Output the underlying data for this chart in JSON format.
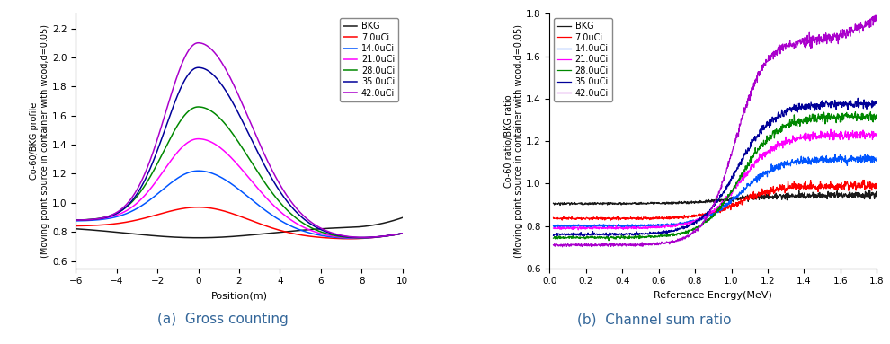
{
  "plot1": {
    "xlabel": "Position(m)",
    "ylabel1": "Co-60/BKG profile",
    "ylabel2": "(Moving point source in container with wood,d=0.05)",
    "xlim": [
      -6,
      10
    ],
    "ylim": [
      0.55,
      2.3
    ],
    "yticks": [
      0.6,
      0.8,
      1.0,
      1.2,
      1.4,
      1.6,
      1.8,
      2.0,
      2.2
    ],
    "xticks": [
      -6,
      -4,
      -2,
      0,
      2,
      4,
      6,
      8,
      10
    ],
    "series": [
      {
        "label": "BKG",
        "color": "#1a1a1a",
        "peak": 0.745,
        "base_l": 0.84,
        "base_r": 0.74,
        "sig_l": 99,
        "sig_r": 99
      },
      {
        "label": "7.0uCi",
        "color": "#ff0000",
        "peak": 0.97,
        "base_l": 0.84,
        "base_r": 0.75,
        "sig_l": 2.0,
        "sig_r": 2.5
      },
      {
        "label": "14.0uCi",
        "color": "#0055ff",
        "peak": 1.22,
        "base_l": 0.875,
        "base_r": 0.75,
        "sig_l": 1.8,
        "sig_r": 2.5
      },
      {
        "label": "21.0uCi",
        "color": "#ff00ff",
        "peak": 1.44,
        "base_l": 0.88,
        "base_r": 0.75,
        "sig_l": 1.7,
        "sig_r": 2.5
      },
      {
        "label": "28.0uCi",
        "color": "#008800",
        "peak": 1.66,
        "base_l": 0.88,
        "base_r": 0.75,
        "sig_l": 1.7,
        "sig_r": 2.5
      },
      {
        "label": "35.0uCi",
        "color": "#000099",
        "peak": 1.93,
        "base_l": 0.88,
        "base_r": 0.75,
        "sig_l": 1.6,
        "sig_r": 2.5
      },
      {
        "label": "42.0uCi",
        "color": "#aa00cc",
        "peak": 2.1,
        "base_l": 0.88,
        "base_r": 0.75,
        "sig_l": 1.6,
        "sig_r": 2.5
      }
    ]
  },
  "plot2": {
    "xlabel": "Reference Energy(MeV)",
    "ylabel1": "Co-60 ratio/BKG ratio",
    "ylabel2": "(Moving point source in container with wood,d=0.05)",
    "xlim": [
      0.0,
      1.8
    ],
    "ylim": [
      0.6,
      1.8
    ],
    "yticks": [
      0.6,
      0.8,
      1.0,
      1.2,
      1.4,
      1.6,
      1.8
    ],
    "xticks": [
      0.0,
      0.2,
      0.4,
      0.6,
      0.8,
      1.0,
      1.2,
      1.4,
      1.6,
      1.8
    ],
    "series": [
      {
        "label": "BKG",
        "color": "#1a1a1a",
        "flat": 0.905,
        "final": 0.945,
        "mid": 1.0,
        "steep": 8
      },
      {
        "label": "7.0uCi",
        "color": "#ff0000",
        "flat": 0.835,
        "final": 0.99,
        "mid": 1.05,
        "steep": 10
      },
      {
        "label": "14.0uCi",
        "color": "#0055ff",
        "flat": 0.8,
        "final": 1.115,
        "mid": 1.05,
        "steep": 10
      },
      {
        "label": "21.0uCi",
        "color": "#ff00ff",
        "flat": 0.79,
        "final": 1.23,
        "mid": 1.05,
        "steep": 10
      },
      {
        "label": "28.0uCi",
        "color": "#008800",
        "flat": 0.745,
        "final": 1.315,
        "mid": 1.05,
        "steep": 10
      },
      {
        "label": "35.0uCi",
        "color": "#000099",
        "flat": 0.76,
        "final": 1.375,
        "mid": 1.03,
        "steep": 10
      },
      {
        "label": "42.0uCi",
        "color": "#aa00cc",
        "flat": 0.71,
        "final": 1.68,
        "mid": 1.02,
        "steep": 12
      }
    ]
  },
  "caption_a": "(a)  Gross counting",
  "caption_b": "(b)  Channel sum ratio",
  "caption_color": "#336699"
}
